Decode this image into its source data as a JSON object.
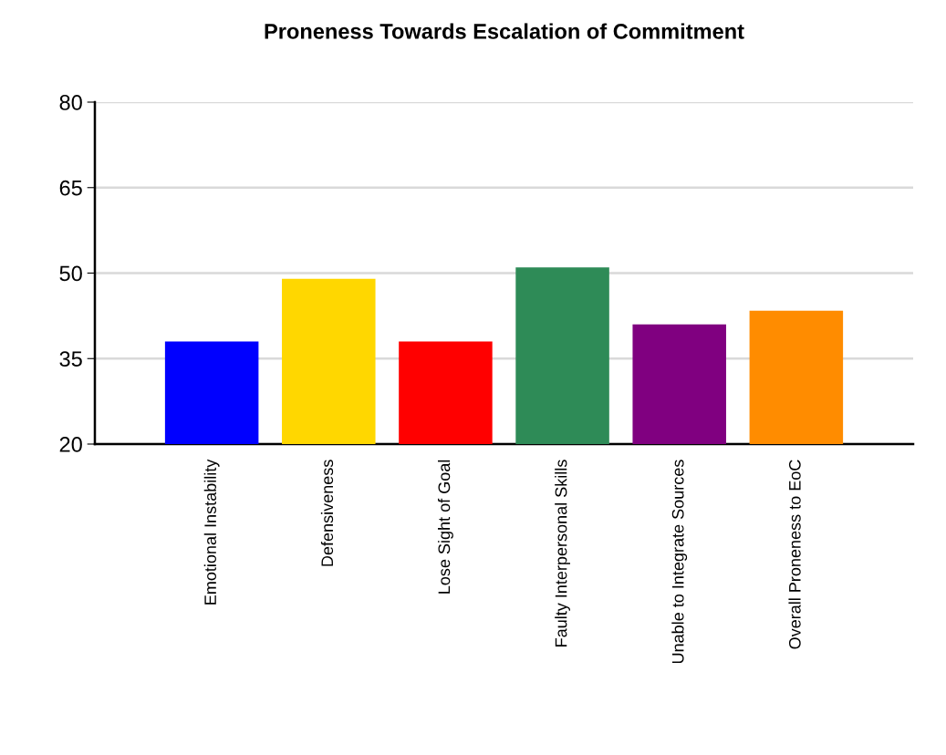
{
  "chart_data": {
    "type": "bar",
    "title": "Proneness Towards Escalation of Commitment",
    "categories": [
      "Emotional Instability",
      "Defensiveness",
      "Lose Sight of Goal",
      "Faulty Interpersonal Skills",
      "Unable to Integrate Sources",
      "Overall Proneness to EoC"
    ],
    "values": [
      38,
      49,
      38,
      51,
      41,
      43.4
    ],
    "colors": [
      "#0000ff",
      "#ffd700",
      "#ff0000",
      "#2e8b57",
      "#800080",
      "#ff8c00"
    ],
    "ylim": [
      20,
      80
    ],
    "yticks": [
      20,
      35,
      50,
      65,
      80
    ],
    "grid": "y"
  }
}
